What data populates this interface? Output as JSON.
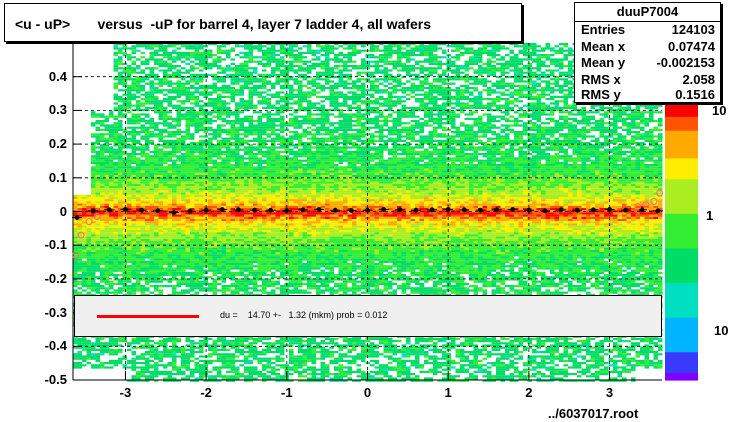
{
  "title": "<u - uP>       versus  -uP for barrel 4, layer 7 ladder 4, all wafers",
  "stats": {
    "name": "duuP7004",
    "rows": [
      {
        "label": "Entries",
        "value": "124103"
      },
      {
        "label": "Mean x",
        "value": "0.07474"
      },
      {
        "label": "Mean y",
        "value": "-0.002153"
      },
      {
        "label": "RMS x",
        "value": "2.058"
      },
      {
        "label": "RMS y",
        "value": "0.1516"
      }
    ]
  },
  "fit": {
    "text": "du =    14.70 +-   1.32 (mkm) prob = 0.012",
    "color": "#ff0000"
  },
  "footer": "../6037017.root",
  "chart_data": {
    "type": "heatmap",
    "title": "<u - uP>       versus  -uP for barrel 4, layer 7 ladder 4, all wafers",
    "xlabel": "",
    "ylabel": "",
    "xlim": [
      -3.65,
      3.65
    ],
    "ylim": [
      -0.5,
      0.5
    ],
    "x_ticks": [
      -3,
      -2,
      -1,
      0,
      1,
      2,
      3
    ],
    "y_ticks": [
      -0.5,
      -0.4,
      -0.3,
      -0.2,
      -0.1,
      0,
      0.1,
      0.2,
      0.3,
      0.4
    ],
    "y_tick_labels": [
      "-0.5",
      "-0.4",
      "-0.3",
      "-0.2",
      "-0.1",
      "0",
      "0.1",
      "0.2",
      "0.3",
      "0.4"
    ],
    "z_scale": "log",
    "z_tick_labels": [
      "10",
      "1",
      "10"
    ],
    "grid": true,
    "profile_points": {
      "x": [
        -3.6,
        -3.4,
        -3.2,
        -3.0,
        -2.8,
        -2.6,
        -2.4,
        -2.2,
        -2.0,
        -1.8,
        -1.6,
        -1.4,
        -1.2,
        -1.0,
        -0.8,
        -0.6,
        -0.4,
        -0.2,
        0.0,
        0.2,
        0.4,
        0.6,
        0.8,
        1.0,
        1.2,
        1.4,
        1.6,
        1.8,
        2.0,
        2.2,
        2.4,
        2.6,
        2.8,
        3.0,
        3.2,
        3.4,
        3.6
      ],
      "y": [
        -0.018,
        0.002,
        0.005,
        0.006,
        0.004,
        0.002,
        -0.003,
        0.001,
        0.004,
        0.006,
        0.005,
        0.004,
        0.004,
        0.003,
        0.005,
        0.006,
        0.004,
        0.003,
        0.004,
        0.006,
        0.005,
        0.004,
        0.005,
        0.006,
        0.005,
        0.004,
        0.005,
        0.006,
        0.004,
        0.002,
        0.005,
        0.004,
        0.005,
        0.006,
        0.004,
        0.005,
        0.002
      ]
    },
    "outer_points": {
      "x": [
        -3.62,
        -3.55,
        -3.45,
        -3.35,
        3.35,
        3.45,
        3.55,
        3.62
      ],
      "y": [
        -0.13,
        -0.07,
        -0.03,
        -0.015,
        0.015,
        0.02,
        0.03,
        0.055
      ]
    }
  }
}
